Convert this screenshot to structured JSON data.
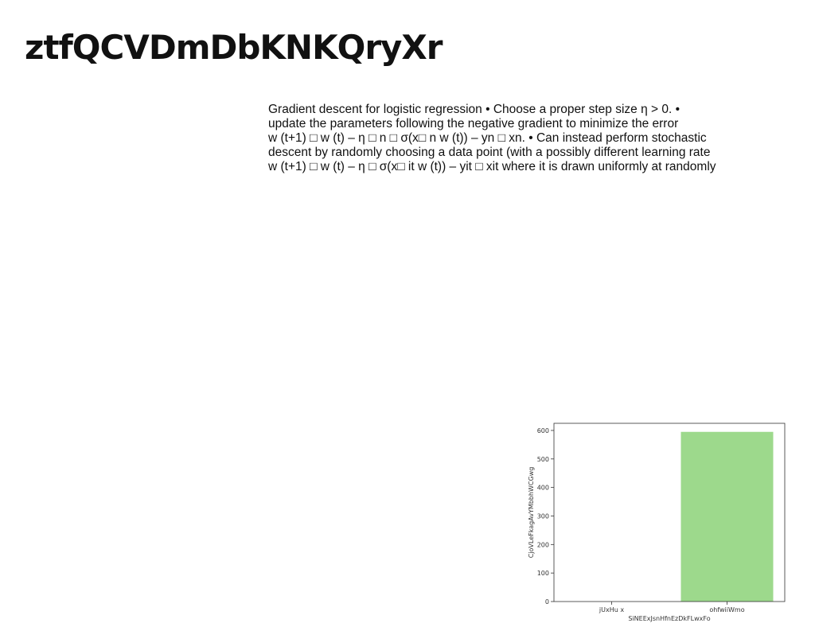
{
  "page": {
    "title": "ztfQCVDmDbKNKQryXr"
  },
  "body": {
    "lines": [
      "Gradient descent for logistic regression • Choose a proper step size η > 0. •",
      "update the parameters following the negative gradient to minimize the error",
      "w (t+1) □ w (t) – η □ n □ σ(x□ n w (t)) – yn □ xn. • Can instead perform stochastic",
      "descent by randomly choosing a data point (with a possibly different learning rate",
      "w (t+1) □ w (t) – η □ σ(x□ it w (t)) – yit □ xit where it is drawn uniformly at randomly"
    ]
  },
  "chart_data": {
    "type": "bar",
    "categories": [
      "jUxHu x",
      "ohfwiiWmo"
    ],
    "values": [
      0,
      595
    ],
    "xlabel": "SiNEExJsnHfnEzDkFLwxFo",
    "ylabel": "CjoVLeFkagAvYMbbhWCGwg",
    "ylim": [
      0,
      625
    ],
    "yticks": [
      "0",
      "100",
      "200",
      "300",
      "400",
      "500",
      "600"
    ],
    "bar_color": "#9dd98c",
    "grid": false
  }
}
